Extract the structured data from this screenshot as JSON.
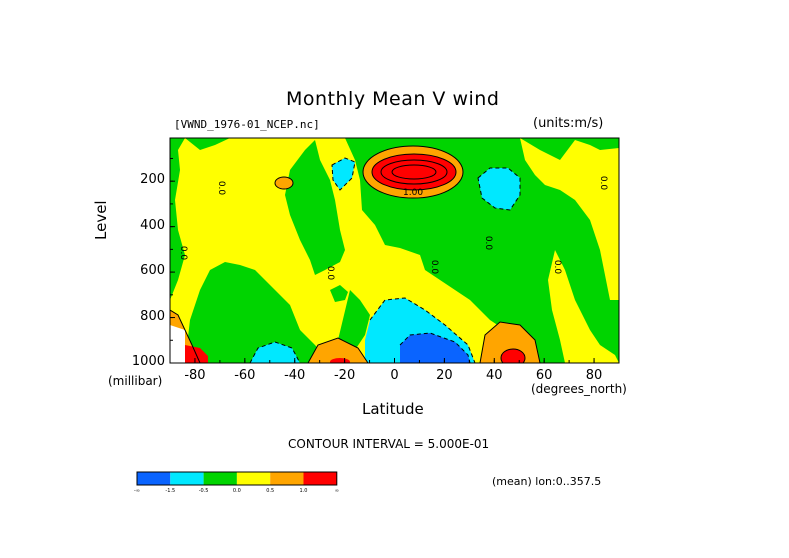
{
  "title": "Monthly Mean V wind",
  "filename": "[VWND_1976-01_NCEP.nc]",
  "units": "(units:m/s)",
  "contour_interval": "CONTOUR INTERVAL = 5.000E-01",
  "mean_lon": "(mean) lon:0..357.5",
  "colors": {
    "blue": "#0a64ff",
    "cyan": "#00e8ff",
    "green": "#00d400",
    "yellow": "#ffff00",
    "orange": "#ffa500",
    "red": "#ff0000"
  },
  "colorbar": {
    "labels": [
      "-∞",
      "-1.5",
      "-0.5",
      "0.0",
      "0.5",
      "1.0",
      "∞"
    ]
  },
  "chart_data": {
    "type": "heatmap",
    "title": "Monthly Mean V wind",
    "xlabel": "Latitude",
    "ylabel": "Level",
    "x_unit": "(degrees_north)",
    "y_unit": "(millibar)",
    "xlim": [
      -90,
      90
    ],
    "ylim": [
      1000,
      10
    ],
    "x_ticks": [
      -80,
      -60,
      -40,
      -20,
      0,
      20,
      40,
      60,
      80
    ],
    "y_ticks": [
      200,
      400,
      600,
      800,
      1000
    ],
    "x_tick_labels": [
      "-80",
      "-60",
      "-40",
      "-20",
      "0",
      "20",
      "40",
      "60",
      "80"
    ],
    "y_tick_labels": [
      "200",
      "400",
      "600",
      "800",
      "1000"
    ],
    "contour_labels": [
      "0.0",
      "0.0",
      "0.0",
      "0.0",
      "0.0",
      "0.0",
      "0.0",
      "1.00"
    ],
    "features": [
      {
        "kind": "max",
        "level": "1.0+",
        "lat": 10,
        "pressure": 170
      },
      {
        "kind": "min",
        "level": "-1.5-",
        "lat": 10,
        "pressure": 940
      },
      {
        "kind": "min",
        "level": "-0.5",
        "lat": 45,
        "pressure": 200
      },
      {
        "kind": "min",
        "level": "-0.5",
        "lat": -22,
        "pressure": 150
      },
      {
        "kind": "max",
        "level": "1.0+",
        "lat": 48,
        "pressure": 980
      },
      {
        "kind": "max",
        "level": "1.0+",
        "lat": -84,
        "pressure": 980
      },
      {
        "kind": "max",
        "level": "1.0+",
        "lat": -20,
        "pressure": 990
      },
      {
        "kind": "min",
        "level": "-0.5",
        "lat": -50,
        "pressure": 980
      }
    ]
  }
}
